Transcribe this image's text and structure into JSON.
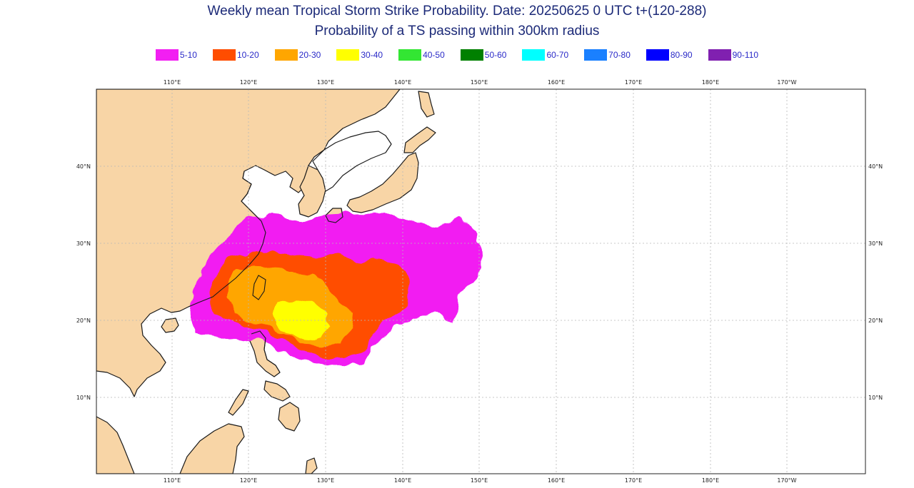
{
  "title": {
    "line1": "Weekly mean Tropical Storm Strike Probability. Date: 20250625  0 UTC   t+(120-288)",
    "line2": "Probability of a TS passing within  300km radius"
  },
  "legend": [
    {
      "label": "5-10",
      "color": "#f21ff2"
    },
    {
      "label": "10-20",
      "color": "#ff4d00"
    },
    {
      "label": "20-30",
      "color": "#ffa600"
    },
    {
      "label": "30-40",
      "color": "#ffff00"
    },
    {
      "label": "40-50",
      "color": "#33e633"
    },
    {
      "label": "50-60",
      "color": "#008000"
    },
    {
      "label": "60-70",
      "color": "#00ffff"
    },
    {
      "label": "70-80",
      "color": "#1a80ff"
    },
    {
      "label": "80-90",
      "color": "#0000ff"
    },
    {
      "label": "90-110",
      "color": "#8020b0"
    }
  ],
  "map": {
    "lon_labels": [
      "110°E",
      "120°E",
      "130°E",
      "140°E",
      "150°E",
      "160°E",
      "170°E",
      "180°E",
      "170°W"
    ],
    "lat_labels": [
      "40°N",
      "30°N",
      "20°N",
      "10°N"
    ],
    "colors": {
      "land": "#f8d5a6",
      "sea": "#ffffff",
      "grid": "#b8b8b8"
    }
  }
}
